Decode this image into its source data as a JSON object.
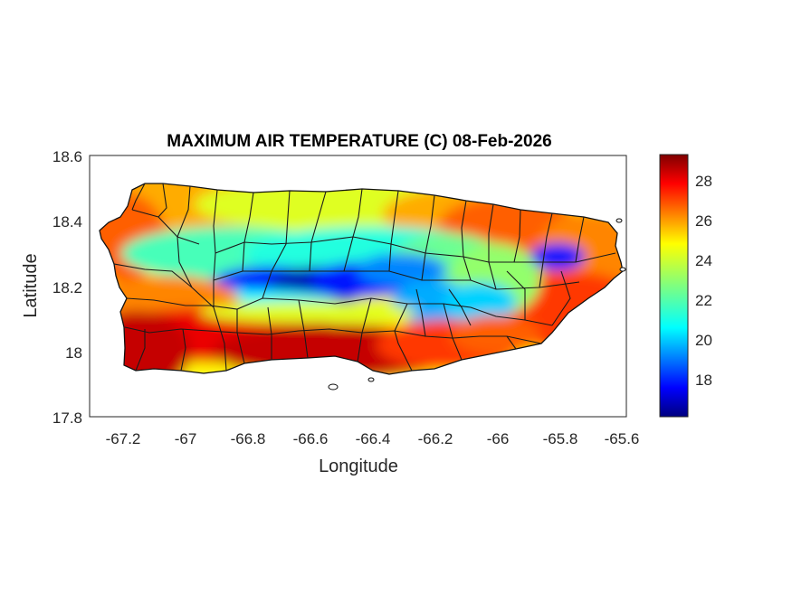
{
  "figure": {
    "title": "MAXIMUM AIR TEMPERATURE (C) 08-Feb-2026",
    "xlabel": "Longitude",
    "ylabel": "Latitude",
    "xticks": [
      "-67.2",
      "-67",
      "-66.8",
      "-66.6",
      "-66.4",
      "-66.2",
      "-66",
      "-65.8",
      "-65.6"
    ],
    "yticks": [
      "18.6",
      "18.4",
      "18.2",
      "18",
      "17.8"
    ],
    "colorbar_ticks": [
      "28",
      "26",
      "24",
      "22",
      "20",
      "18"
    ]
  },
  "chart_data": {
    "type": "heatmap",
    "title": "MAXIMUM AIR TEMPERATURE (C) 08-Feb-2026",
    "xlabel": "Longitude",
    "ylabel": "Latitude",
    "xlim": [
      -67.3,
      -65.58
    ],
    "ylim": [
      17.8,
      18.6
    ],
    "colormap": "jet",
    "color_range": [
      16.1,
      29.4
    ],
    "colorbar_ticks": [
      18,
      20,
      22,
      24,
      26,
      28
    ],
    "grid": false,
    "region": "Puerto Rico",
    "field_description_values": [
      {
        "lon": -67.2,
        "lat": 18.4,
        "t": 26
      },
      {
        "lon": -67.15,
        "lat": 18.05,
        "t": 28.5
      },
      {
        "lon": -66.95,
        "lat": 18.42,
        "t": 24
      },
      {
        "lon": -66.75,
        "lat": 18.2,
        "t": 17.5
      },
      {
        "lon": -66.6,
        "lat": 18.2,
        "t": 17
      },
      {
        "lon": -66.45,
        "lat": 18.2,
        "t": 18
      },
      {
        "lon": -66.5,
        "lat": 17.98,
        "t": 29
      },
      {
        "lon": -66.35,
        "lat": 18.42,
        "t": 23.5
      },
      {
        "lon": -66.15,
        "lat": 18.18,
        "t": 21
      },
      {
        "lon": -66.0,
        "lat": 18.38,
        "t": 26.5
      },
      {
        "lon": -65.8,
        "lat": 18.28,
        "t": 18.5
      },
      {
        "lon": -65.75,
        "lat": 18.12,
        "t": 26.5
      },
      {
        "lon": -65.65,
        "lat": 18.3,
        "t": 25
      }
    ]
  }
}
